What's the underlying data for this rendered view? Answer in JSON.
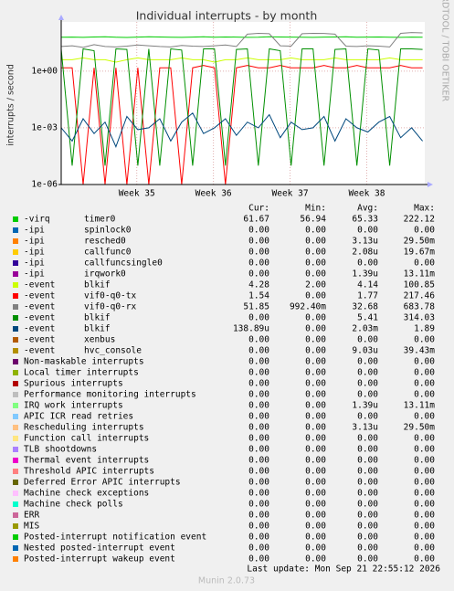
{
  "chart_data": {
    "type": "line",
    "title": "Individual interrupts - by month",
    "y_label": "interrupts / second",
    "side_label": "RRDTOOL / TOBI OETIKER",
    "log_scale": true,
    "grid": true,
    "x": [
      0,
      1,
      2,
      3,
      4,
      5,
      6,
      7,
      8,
      9,
      10,
      11,
      12,
      13,
      14,
      15,
      16,
      17,
      18,
      19,
      20,
      21,
      22,
      23,
      24,
      25,
      26,
      27,
      28,
      29,
      30,
      31,
      32,
      33
    ],
    "xlim": [
      0,
      33.2
    ],
    "xticks": [
      {
        "value": 6.9,
        "label": "Week 35"
      },
      {
        "value": 13.9,
        "label": "Week 36"
      },
      {
        "value": 20.9,
        "label": "Week 37"
      },
      {
        "value": 27.9,
        "label": "Week 38"
      }
    ],
    "ylim": [
      1e-06,
      400
    ],
    "yticks": [
      {
        "value": 1e-06,
        "label": "1e-06"
      },
      {
        "value": 0.001,
        "label": "1e-03"
      },
      {
        "value": 1,
        "label": "1e+00"
      }
    ],
    "legend_header": [
      "Cur:",
      "Min:",
      "Avg:",
      "Max:"
    ],
    "series": [
      {
        "group": "-virq",
        "name": "timer0",
        "color": "#00cc00",
        "stats": [
          "61.67",
          "56.94",
          "65.33",
          "222.12"
        ],
        "values": [
          62,
          63,
          61,
          64,
          65,
          62,
          60,
          63,
          66,
          64,
          62,
          61,
          63,
          65,
          62,
          64,
          63,
          61,
          62,
          66,
          64,
          63,
          62,
          61,
          63,
          64,
          65,
          62,
          63,
          64,
          62,
          61,
          63,
          62
        ]
      },
      {
        "group": "-ipi",
        "name": "spinlock0",
        "color": "#0066b3",
        "stats": [
          "0.00",
          "0.00",
          "0.00",
          "0.00"
        ]
      },
      {
        "group": "-ipi",
        "name": "resched0",
        "color": "#ff8000",
        "stats": [
          "0.00",
          "0.00",
          "3.13u",
          "29.50m"
        ]
      },
      {
        "group": "-ipi",
        "name": "callfunc0",
        "color": "#ffcc00",
        "stats": [
          "0.00",
          "0.00",
          "2.08u",
          "19.67m"
        ]
      },
      {
        "group": "-ipi",
        "name": "callfuncsingle0",
        "color": "#330099",
        "stats": [
          "0.00",
          "0.00",
          "0.00",
          "0.00"
        ]
      },
      {
        "group": "-ipi",
        "name": "irqwork0",
        "color": "#990099",
        "stats": [
          "0.00",
          "0.00",
          "1.39u",
          "13.11m"
        ]
      },
      {
        "group": "-event",
        "name": "blkif",
        "color": "#ccff00",
        "stats": [
          "4.28",
          "2.00",
          "4.14",
          "100.85"
        ],
        "values": [
          4,
          4,
          5,
          4,
          4,
          3,
          4,
          5,
          4,
          4,
          4,
          5,
          4,
          4,
          3,
          4,
          4,
          5,
          4,
          4,
          4,
          5,
          4,
          4,
          4,
          5,
          4,
          4,
          4,
          4,
          5,
          4,
          4,
          4
        ]
      },
      {
        "group": "-event",
        "name": "vif0-q0-tx",
        "color": "#ff0000",
        "stats": [
          "1.54",
          "0.00",
          "1.77",
          "217.46"
        ],
        "values": [
          1.5,
          1.5,
          1e-06,
          1.5,
          1e-06,
          1.5,
          1e-06,
          1.5,
          1e-06,
          1.5,
          1.5,
          1e-06,
          1.5,
          2,
          1.5,
          1e-06,
          1.5,
          2,
          1.5,
          1.5,
          2,
          1.5,
          1.5,
          1.5,
          2,
          1.5,
          1.5,
          2,
          1.5,
          1.5,
          1.5,
          2,
          1.5,
          1.5
        ]
      },
      {
        "group": "-event",
        "name": "vif0-q0-rx",
        "color": "#808080",
        "stats": [
          "51.85",
          "992.40m",
          "32.68",
          "683.78"
        ],
        "values": [
          20,
          22,
          18,
          25,
          20,
          19,
          21,
          24,
          22,
          20,
          19,
          23,
          21,
          20,
          22,
          24,
          20,
          90,
          100,
          95,
          22,
          21,
          95,
          100,
          98,
          90,
          21,
          20,
          22,
          21,
          19,
          100,
          110,
          105
        ]
      },
      {
        "group": "-event",
        "name": "blkif",
        "color": "#008f00",
        "stats": [
          "0.00",
          "0.00",
          "5.41",
          "314.03"
        ],
        "values": [
          15,
          1e-05,
          15,
          12,
          1e-05,
          15,
          14,
          1e-05,
          15,
          1e-05,
          15,
          13,
          1e-05,
          15,
          15,
          1e-05,
          14,
          15,
          1e-05,
          15,
          12,
          1e-05,
          15,
          15,
          1e-05,
          14,
          15,
          1e-05,
          15,
          13,
          1e-05,
          15,
          15,
          14
        ]
      },
      {
        "group": "-event",
        "name": "blkif",
        "color": "#00487d",
        "stats": [
          "138.89u",
          "0.00",
          "2.03m",
          "1.89"
        ],
        "values": [
          0.001,
          0.0002,
          0.003,
          0.0005,
          0.002,
          0.0001,
          0.004,
          0.0008,
          0.001,
          0.003,
          0.0002,
          0.002,
          0.006,
          0.0005,
          0.001,
          0.003,
          0.0004,
          0.002,
          0.001,
          0.005,
          0.0003,
          0.002,
          0.0008,
          0.001,
          0.004,
          0.0002,
          0.003,
          0.001,
          0.0006,
          0.002,
          0.004,
          0.0003,
          0.001,
          0.0002
        ]
      },
      {
        "group": "-event",
        "name": "xenbus",
        "color": "#b35a00",
        "stats": [
          "0.00",
          "0.00",
          "0.00",
          "0.00"
        ]
      },
      {
        "group": "-event",
        "name": "hvc_console",
        "color": "#b38f00",
        "stats": [
          "0.00",
          "0.00",
          "9.03u",
          "39.43m"
        ]
      },
      {
        "name": "Non-maskable interrupts",
        "color": "#6b006b",
        "stats": [
          "0.00",
          "0.00",
          "0.00",
          "0.00"
        ]
      },
      {
        "name": "Local timer interrupts",
        "color": "#8fb300",
        "stats": [
          "0.00",
          "0.00",
          "0.00",
          "0.00"
        ]
      },
      {
        "name": "Spurious interrupts",
        "color": "#b30000",
        "stats": [
          "0.00",
          "0.00",
          "0.00",
          "0.00"
        ]
      },
      {
        "name": "Performance monitoring interrupts",
        "color": "#bebebe",
        "stats": [
          "0.00",
          "0.00",
          "0.00",
          "0.00"
        ]
      },
      {
        "name": "IRQ work interrupts",
        "color": "#80ff80",
        "stats": [
          "0.00",
          "0.00",
          "1.39u",
          "13.11m"
        ]
      },
      {
        "name": "APIC ICR read retries",
        "color": "#80c9ff",
        "stats": [
          "0.00",
          "0.00",
          "0.00",
          "0.00"
        ]
      },
      {
        "name": "Rescheduling interrupts",
        "color": "#ffc080",
        "stats": [
          "0.00",
          "0.00",
          "3.13u",
          "29.50m"
        ]
      },
      {
        "name": "Function call interrupts",
        "color": "#ffe680",
        "stats": [
          "0.00",
          "0.00",
          "0.00",
          "0.00"
        ]
      },
      {
        "name": "TLB shootdowns",
        "color": "#aa80ff",
        "stats": [
          "0.00",
          "0.00",
          "0.00",
          "0.00"
        ]
      },
      {
        "name": "Thermal event interrupts",
        "color": "#ee00cc",
        "stats": [
          "0.00",
          "0.00",
          "0.00",
          "0.00"
        ]
      },
      {
        "name": "Threshold APIC interrupts",
        "color": "#ff8080",
        "stats": [
          "0.00",
          "0.00",
          "0.00",
          "0.00"
        ]
      },
      {
        "name": "Deferred Error APIC interrupts",
        "color": "#666600",
        "stats": [
          "0.00",
          "0.00",
          "0.00",
          "0.00"
        ]
      },
      {
        "name": "Machine check exceptions",
        "color": "#ffbfff",
        "stats": [
          "0.00",
          "0.00",
          "0.00",
          "0.00"
        ]
      },
      {
        "name": "Machine check polls",
        "color": "#00ffcc",
        "stats": [
          "0.00",
          "0.00",
          "0.00",
          "0.00"
        ]
      },
      {
        "name": "ERR",
        "color": "#cc6699",
        "stats": [
          "0.00",
          "0.00",
          "0.00",
          "0.00"
        ]
      },
      {
        "name": "MIS",
        "color": "#999900",
        "stats": [
          "0.00",
          "0.00",
          "0.00",
          "0.00"
        ]
      },
      {
        "name": "Posted-interrupt notification event",
        "color": "#00cc00",
        "stats": [
          "0.00",
          "0.00",
          "0.00",
          "0.00"
        ]
      },
      {
        "name": "Nested posted-interrupt event",
        "color": "#0066b3",
        "stats": [
          "0.00",
          "0.00",
          "0.00",
          "0.00"
        ]
      },
      {
        "name": "Posted-interrupt wakeup event",
        "color": "#ff8000",
        "stats": [
          "0.00",
          "0.00",
          "0.00",
          "0.00"
        ]
      }
    ],
    "last_update": "Last update: Mon Sep 21 22:55:12 2026",
    "footer": "Munin 2.0.73"
  }
}
